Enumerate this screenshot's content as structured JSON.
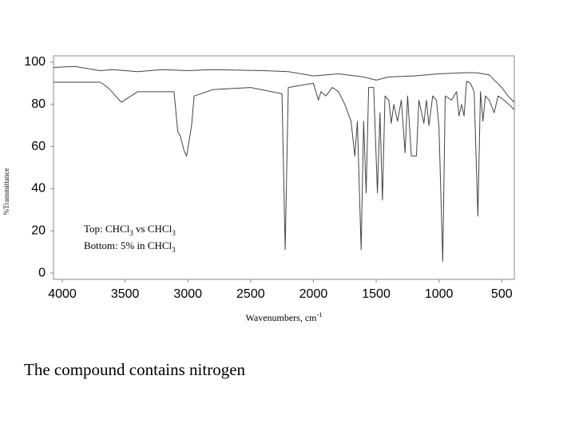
{
  "chart_data": {
    "type": "line",
    "x_label": [
      {
        "text": "Wavenumbers, cm"
      },
      {
        "text": "-1",
        "sup": true
      }
    ],
    "y_label": "%Transmittance",
    "xlim": [
      4070,
      400
    ],
    "xticks": [
      4000,
      3500,
      3000,
      2500,
      2000,
      1500,
      1000,
      500
    ],
    "ylim": [
      -3,
      103
    ],
    "yticks": [
      0,
      20,
      40,
      60,
      80,
      100
    ],
    "grid": false,
    "annotation": [
      [
        {
          "text": "Top: CHCl"
        },
        {
          "text": "3",
          "sub": true
        },
        {
          "text": " vs CHCl"
        },
        {
          "text": "3",
          "sub": true
        }
      ],
      [
        {
          "text": "Bottom: 5% in CHCl"
        },
        {
          "text": "3",
          "sub": true
        }
      ]
    ],
    "series": [
      {
        "color": "#444444",
        "x": [
          4070,
          3900,
          3700,
          3600,
          3400,
          3200,
          3000,
          2800,
          2400,
          2200,
          2000,
          1800,
          1600,
          1500,
          1400,
          1200,
          1000,
          800,
          700,
          600,
          550,
          500,
          450,
          400
        ],
        "values": [
          97.5,
          98,
          96,
          96.5,
          95.5,
          96.5,
          96,
          96.5,
          96,
          95.5,
          93.5,
          94.5,
          93,
          91.5,
          93,
          93.5,
          94.5,
          95,
          95,
          94,
          91,
          88,
          84,
          81
        ]
      },
      {
        "color": "#444444",
        "x": [
          4070,
          3700,
          3670,
          3620,
          3530,
          3400,
          3300,
          3110,
          3080,
          3060,
          3030,
          3010,
          2970,
          2950,
          2800,
          2500,
          2250,
          2225,
          2200,
          2000,
          1960,
          1940,
          1900,
          1850,
          1800,
          1750,
          1700,
          1670,
          1650,
          1620,
          1600,
          1580,
          1560,
          1520,
          1490,
          1470,
          1450,
          1430,
          1400,
          1380,
          1360,
          1330,
          1300,
          1270,
          1250,
          1220,
          1180,
          1160,
          1120,
          1100,
          1080,
          1050,
          1020,
          1000,
          970,
          950,
          900,
          860,
          840,
          820,
          800,
          780,
          750,
          720,
          690,
          670,
          650,
          630,
          600,
          560,
          530,
          480,
          400
        ],
        "values": [
          90.5,
          90.5,
          89.5,
          87,
          81,
          86,
          86,
          86,
          67,
          65,
          58,
          55.5,
          70,
          84,
          87,
          88,
          85,
          11,
          88,
          90,
          82,
          86,
          84,
          88,
          86,
          80,
          72,
          55.5,
          72,
          11,
          72,
          38,
          88,
          88,
          38,
          76,
          34.6,
          84,
          82,
          71,
          80,
          72,
          82,
          57,
          84,
          55.5,
          55.5,
          82,
          71,
          82,
          70,
          84,
          82,
          69,
          5.5,
          84,
          82,
          86,
          74.5,
          80,
          74.5,
          91,
          90,
          86,
          27,
          86,
          72,
          84,
          82,
          76,
          84,
          82,
          77.5
        ]
      }
    ]
  },
  "caption": "The compound contains nitrogen"
}
